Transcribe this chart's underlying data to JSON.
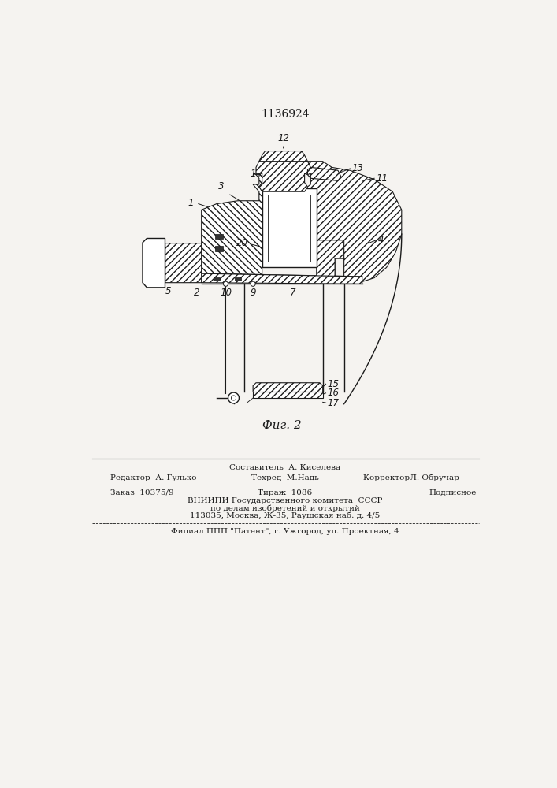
{
  "patent_number": "1136924",
  "figure_caption": "Фиг. 2",
  "background_color": "#f5f3f0",
  "line_color": "#1a1a1a",
  "footer": {
    "editor_label": "Редактор  А. Гулько",
    "composer_label": "Составитель  А. Киселева",
    "techred_label": "Техред  М.Надь",
    "corrector_label": "КорректорЛ. Обручар",
    "order_label": "Заказ  10375/9",
    "tirazh_label": "Тираж  1086",
    "podpisnoe_label": "Подписное",
    "vniiipi_line1": "ВНИИПИ Государственного комитета  СССР",
    "vniiipi_line2": "по делам изобретений и открытий",
    "vniiipi_line3": "113035, Москва, Ж-35, Раушская наб. д. 4/5",
    "filial_line": "Филиал ППП \"Патент\", г. Ужгород, ул. Проектная, 4"
  }
}
